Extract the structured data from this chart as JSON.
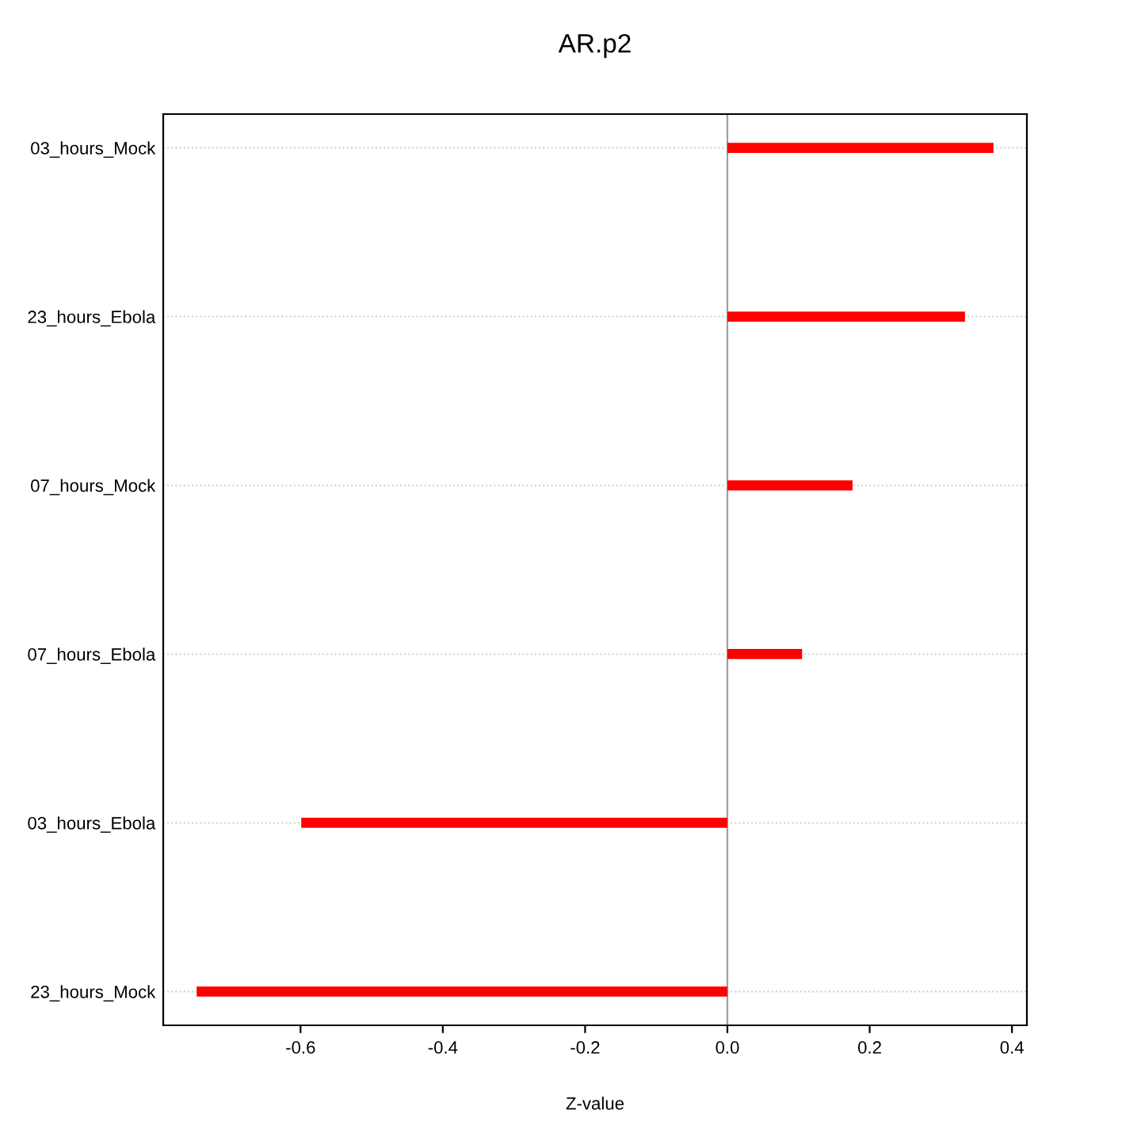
{
  "chart_data": {
    "type": "bar",
    "orientation": "horizontal",
    "title": "AR.p2",
    "xlabel": "Z-value",
    "categories": [
      "03_hours_Mock",
      "23_hours_Ebola",
      "07_hours_Mock",
      "07_hours_Ebola",
      "03_hours_Ebola",
      "23_hours_Mock"
    ],
    "values": [
      0.374,
      0.334,
      0.176,
      0.105,
      -0.599,
      -0.746
    ],
    "color": "#ff0000",
    "xlim": [
      -0.793,
      0.421
    ],
    "xticks": [
      -0.6,
      -0.4,
      -0.2,
      {
        "value": 0,
        "label": "0.0"
      },
      0.2,
      0.4
    ],
    "grid": "y",
    "ref_lines": [
      {
        "axis": "x",
        "value": 0,
        "color": "#a0a0a0",
        "line_style": "solid"
      }
    ]
  }
}
